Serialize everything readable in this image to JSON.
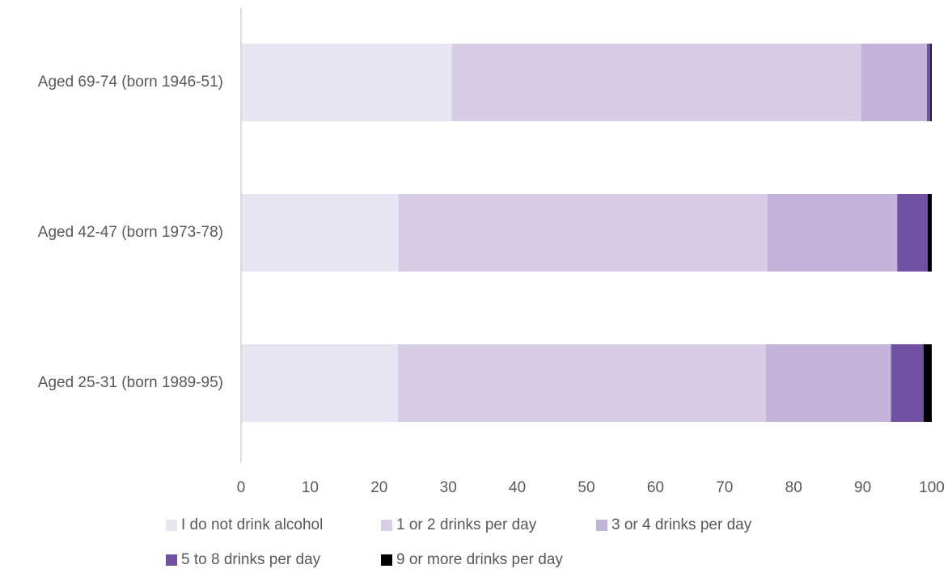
{
  "chart_data": {
    "type": "bar",
    "orientation": "horizontal",
    "stacked": true,
    "title": "",
    "xlabel": "",
    "ylabel": "",
    "xlim": [
      0,
      100
    ],
    "x_ticks": [
      "0",
      "10",
      "20",
      "30",
      "40",
      "50",
      "60",
      "70",
      "80",
      "90",
      "100"
    ],
    "categories": [
      "Aged 69-74 (born 1946-51)",
      "Aged 42-47 (born 1973-78)",
      "Aged 25-31 (born 1989-95)"
    ],
    "series": [
      {
        "name": "I do not drink alcohol",
        "color": "#e8e5f2",
        "values": [
          30.5,
          22.8,
          22.7
        ]
      },
      {
        "name": "1 or 2 drinks per day",
        "color": "#d7cde6",
        "values": [
          59.3,
          53.4,
          53.3
        ]
      },
      {
        "name": "3 or 4 drinks per day",
        "color": "#c3b3d8",
        "values": [
          9.5,
          18.8,
          18.1
        ]
      },
      {
        "name": "5 to 8 drinks per day",
        "color": "#7151a2",
        "values": [
          0.5,
          4.4,
          4.7
        ]
      },
      {
        "name": "9 or more drinks per day",
        "color": "#000000",
        "values": [
          0.2,
          0.6,
          1.2
        ]
      }
    ],
    "grid": false,
    "legend_position": "bottom"
  }
}
